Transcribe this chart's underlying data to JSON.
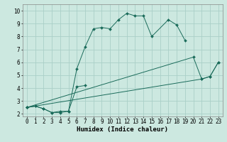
{
  "title": "",
  "xlabel": "Humidex (Indice chaleur)",
  "bg_color": "#cce8e0",
  "line_color": "#1a6b5a",
  "grid_color": "#aacfc8",
  "xlim": [
    -0.5,
    23.5
  ],
  "ylim": [
    1.8,
    10.5
  ],
  "xticks": [
    0,
    1,
    2,
    3,
    4,
    5,
    6,
    7,
    8,
    9,
    10,
    11,
    12,
    13,
    14,
    15,
    16,
    17,
    18,
    19,
    20,
    21,
    22,
    23
  ],
  "yticks": [
    2,
    3,
    4,
    5,
    6,
    7,
    8,
    9,
    10
  ],
  "series1_x": [
    0,
    1,
    2,
    3,
    4,
    5,
    6,
    7,
    8,
    9,
    10,
    11,
    12,
    13,
    14,
    15,
    17,
    18,
    19
  ],
  "series1_y": [
    2.5,
    2.6,
    2.4,
    2.1,
    2.1,
    2.2,
    5.5,
    7.2,
    8.6,
    8.7,
    8.6,
    9.3,
    9.8,
    9.6,
    9.6,
    8.0,
    9.3,
    8.9,
    7.7
  ],
  "series2_x": [
    0,
    1,
    2,
    3,
    4,
    5,
    6,
    7
  ],
  "series2_y": [
    2.5,
    2.6,
    2.4,
    2.1,
    2.2,
    2.2,
    4.1,
    4.2
  ],
  "series3_x": [
    0,
    20,
    21,
    22,
    23
  ],
  "series3_y": [
    2.5,
    6.4,
    4.7,
    4.9,
    6.0
  ],
  "series4_x": [
    0,
    21,
    22,
    23
  ],
  "series4_y": [
    2.5,
    4.7,
    4.9,
    6.0
  ],
  "font_size": 6.5,
  "tick_font_size": 5.5
}
